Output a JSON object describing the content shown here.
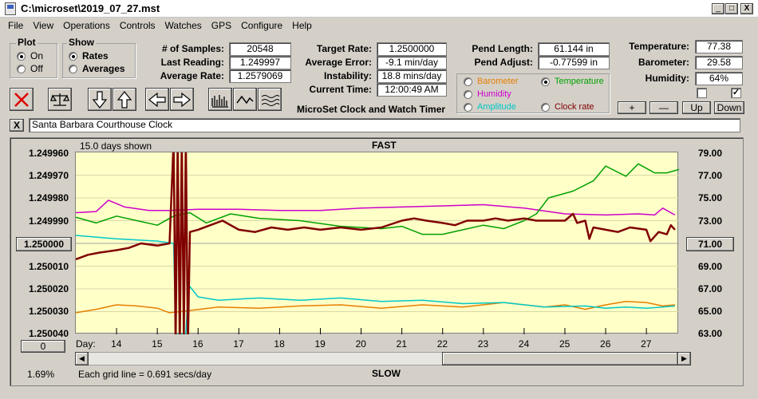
{
  "window": {
    "title": "C:\\microset\\2019_07_27.mst",
    "minimize": "_",
    "maximize": "□",
    "close": "X"
  },
  "menu": [
    "File",
    "View",
    "Operations",
    "Controls",
    "Watches",
    "GPS",
    "Configure",
    "Help"
  ],
  "plot_group": {
    "title": "Plot",
    "options": [
      "On",
      "Off"
    ],
    "selected": "On"
  },
  "show_group": {
    "title": "Show",
    "options": [
      "Rates",
      "Averages"
    ],
    "selected": "Rates"
  },
  "stats": {
    "samples_label": "# of Samples:",
    "samples": "20548",
    "last_reading_label": "Last Reading:",
    "last_reading": "1.249997",
    "average_rate_label": "Average Rate:",
    "average_rate": "1.2579069",
    "target_rate_label": "Target Rate:",
    "target_rate": "1.2500000",
    "average_error_label": "Average Error:",
    "average_error": "-9.1 min/day",
    "instability_label": "Instability:",
    "instability": "18.8 mins/day",
    "current_time_label": "Current Time:",
    "current_time": "12:00:49 AM",
    "pend_length_label": "Pend Length:",
    "pend_length": "61.144 in",
    "pend_adjust_label": "Pend Adjust:",
    "pend_adjust": "-0.77599 in",
    "temperature_label": "Temperature:",
    "temperature": "77.38",
    "barometer_label": "Barometer:",
    "barometer": "29.58",
    "humidity_label": "Humidity:",
    "humidity": "64%"
  },
  "app_name": "MicroSet Clock and Watch Timer",
  "right_axis_group": {
    "options": [
      {
        "label": "Barometer",
        "color": "#e67e00",
        "selected": false
      },
      {
        "label": "Temperature",
        "color": "#00a000",
        "selected": true
      },
      {
        "label": "Humidity",
        "color": "#cc00cc",
        "selected": false
      },
      {
        "label": "Amplitude",
        "color": "#00c8c8",
        "selected": false
      },
      {
        "label": "Clock rate",
        "color": "#800000",
        "selected": false
      }
    ]
  },
  "zoom_buttons": {
    "plus": "+",
    "minus": "—",
    "up": "Up",
    "down": "Down"
  },
  "clock_name": "Santa Barbara Courthouse Clock",
  "clock_close": "X",
  "chart_data": {
    "type": "line",
    "top_label": "FAST",
    "bottom_label": "SLOW",
    "days_shown": "15.0 days shown",
    "grid_note": "Each grid line = 0.691 secs/day",
    "percent": "1.69%",
    "left_ticks": [
      "1.249960",
      "1.249970",
      "1.249980",
      "1.249990",
      "1.250000",
      "1.250010",
      "1.250020",
      "1.250030",
      "1.250040"
    ],
    "left_center_button": "1.250000",
    "left_bottom_button": "0",
    "right_ticks": [
      "79.00",
      "77.00",
      "75.00",
      "73.00",
      "71.00",
      "69.00",
      "67.00",
      "65.00",
      "63.00"
    ],
    "right_center_button": "71.00",
    "x_label": "Day:",
    "days": [
      "14",
      "15",
      "16",
      "17",
      "18",
      "19",
      "20",
      "21",
      "22",
      "23",
      "24",
      "25",
      "26",
      "27"
    ],
    "xlim": [
      13,
      27.8
    ],
    "left_ylim": [
      1.24996,
      1.25004
    ],
    "right_ylim": [
      63,
      79
    ],
    "series": [
      {
        "name": "Humidity",
        "color": "#cc00cc",
        "x": [
          13,
          13.5,
          13.8,
          14.2,
          14.8,
          15.3,
          16,
          17,
          18,
          19,
          20,
          21,
          22,
          23,
          24,
          25,
          26,
          26.8,
          27.2,
          27.4,
          27.7
        ],
        "right": [
          73.7,
          73.8,
          74.8,
          74.2,
          73.9,
          73.9,
          74.0,
          74.0,
          73.9,
          73.9,
          74.1,
          74.2,
          74.3,
          74.4,
          74.1,
          73.6,
          73.5,
          73.6,
          73.5,
          74.1,
          73.5
        ]
      },
      {
        "name": "Temperature",
        "color": "#00a000",
        "x": [
          13,
          13.5,
          14,
          14.5,
          15,
          15.4,
          15.8,
          16.2,
          16.8,
          17.5,
          18.5,
          19.5,
          20.5,
          21,
          21.5,
          22,
          22.5,
          23,
          23.5,
          24,
          24.3,
          24.6,
          25.2,
          25.7,
          26,
          26.5,
          26.8,
          27.2,
          27.5,
          27.8
        ],
        "right": [
          73.3,
          72.8,
          73.4,
          73.0,
          72.6,
          73.4,
          73.7,
          72.8,
          73.6,
          73.2,
          73.0,
          72.5,
          72.3,
          72.5,
          71.8,
          71.8,
          72.2,
          72.6,
          72.3,
          73.0,
          73.6,
          75.0,
          75.6,
          76.5,
          77.8,
          76.9,
          78.0,
          77.2,
          77.2,
          77.5
        ]
      },
      {
        "name": "Barometer",
        "color": "#e67e00",
        "x": [
          13,
          13.5,
          14,
          14.5,
          15,
          15.3,
          15.8,
          16.5,
          17.5,
          18.5,
          19.5,
          20.5,
          21.5,
          22.5,
          23.5,
          24.5,
          25,
          25.5,
          26,
          26.5,
          27,
          27.4,
          27.7
        ],
        "right": [
          64.9,
          65.2,
          65.6,
          65.5,
          65.3,
          64.9,
          65.1,
          65.4,
          65.3,
          65.5,
          65.6,
          65.3,
          65.6,
          65.4,
          65.8,
          65.4,
          65.6,
          65.2,
          65.6,
          65.9,
          65.8,
          65.5,
          65.6
        ]
      },
      {
        "name": "Amplitude",
        "color": "#00c8c8",
        "x": [
          13,
          14,
          15,
          15.4,
          15.45,
          15.5,
          15.7,
          15.75,
          15.8,
          16,
          16.5,
          17.5,
          18.5,
          19.5,
          20.5,
          21.5,
          22.5,
          23.5,
          24.5,
          25.5,
          26,
          26.5,
          27,
          27.4,
          27.7
        ],
        "right": [
          71.7,
          71.4,
          71.2,
          71.0,
          63.0,
          63.0,
          63.0,
          66.5,
          67.2,
          66.3,
          66.0,
          66.2,
          66.0,
          66.2,
          65.9,
          66.0,
          65.7,
          65.8,
          65.4,
          65.5,
          65.3,
          65.4,
          65.3,
          65.4,
          65.5
        ]
      },
      {
        "name": "Clock rate",
        "color": "#800000",
        "x": [
          13,
          13.3,
          13.6,
          14,
          14.3,
          14.6,
          15,
          15.3,
          15.4,
          15.45,
          15.5,
          15.55,
          15.6,
          15.65,
          15.7,
          15.75,
          15.8,
          16.0,
          16.3,
          16.6,
          17,
          17.4,
          17.8,
          18.2,
          18.6,
          19,
          19.5,
          20,
          20.5,
          21,
          21.3,
          21.6,
          22,
          22.3,
          22.6,
          23,
          23.3,
          23.6,
          24,
          24.3,
          24.6,
          25,
          25.2,
          25.3,
          25.5,
          25.6,
          25.7,
          26,
          26.3,
          26.6,
          27,
          27.1,
          27.3,
          27.5,
          27.6,
          27.7
        ],
        "left": [
          1.250007,
          1.250005,
          1.250004,
          1.250003,
          1.250002,
          1.25,
          1.250001,
          1.25,
          1.249955,
          1.250045,
          1.249955,
          1.250045,
          1.249955,
          1.25004,
          1.249955,
          1.250045,
          1.249995,
          1.249994,
          1.249992,
          1.24999,
          1.249994,
          1.249995,
          1.249993,
          1.249994,
          1.249993,
          1.249994,
          1.249993,
          1.249994,
          1.249993,
          1.24999,
          1.249989,
          1.24999,
          1.249991,
          1.249992,
          1.24999,
          1.24999,
          1.249989,
          1.24999,
          1.249989,
          1.24999,
          1.24999,
          1.24999,
          1.249987,
          1.249991,
          1.24999,
          1.249998,
          1.249993,
          1.249994,
          1.249995,
          1.249993,
          1.249994,
          1.249999,
          1.249995,
          1.249996,
          1.249992,
          1.249994
        ]
      }
    ]
  }
}
